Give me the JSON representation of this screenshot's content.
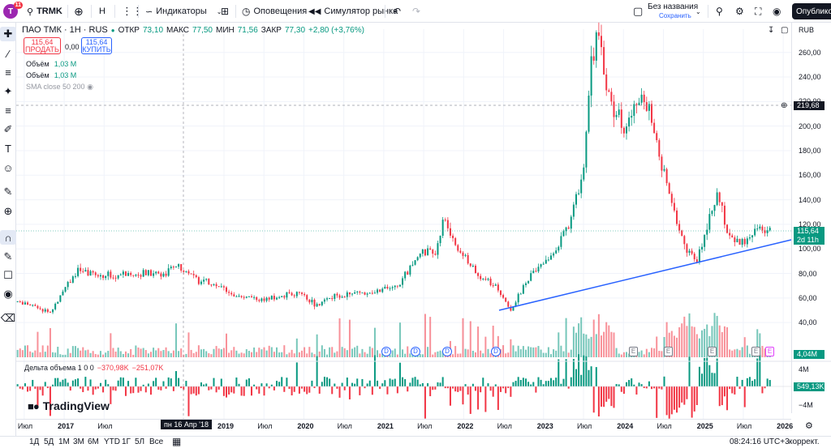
{
  "topbar": {
    "avatar_letter": "T",
    "avatar_badge": "11",
    "symbol": "TRMK",
    "interval": "H",
    "indicators_label": "Индикаторы",
    "alerts_label": "Оповещения",
    "replay_label": "Симулятор рынка",
    "layout_name": "Без названия",
    "layout_save": "Сохранить",
    "publish_label": "Опубликов"
  },
  "legend": {
    "title": "ПАО ТМК · 1Н · RUS",
    "open_key": "ОТКР",
    "open": "73,10",
    "high_key": "МАКС",
    "high": "77,50",
    "low_key": "МИН",
    "low": "71,56",
    "close_key": "ЗАКР",
    "close": "77,30",
    "change": "+2,80 (+3,76%)",
    "sell_price": "115,64",
    "sell_label": "ПРОДАТЬ",
    "spread": "0,00",
    "buy_price": "115,64",
    "buy_label": "КУПИТЬ",
    "vol1_label": "Объём",
    "vol1_value": "1,03 M",
    "vol2_label": "Объём",
    "vol2_value": "1,03 M",
    "sma_label": "SMA close 50 200",
    "currency": "RUB"
  },
  "delta_legend": {
    "label": "Дельта объема 1 0 0",
    "v1": "−370,98K",
    "v2": "−251,07K"
  },
  "price_scale": {
    "labels": [
      "260,00",
      "240,00",
      "220,00",
      "200,00",
      "180,00",
      "160,00",
      "140,00",
      "120,00",
      "100,00",
      "80,00",
      "60,00",
      "40,00"
    ],
    "crosshair_value": "219,68",
    "last_price": "115,64",
    "countdown": "2d 11h",
    "volume_value": "4,04M",
    "delta_axis": [
      "4M",
      "−4M"
    ],
    "delta_value": "549,13K"
  },
  "time_axis": {
    "labels": [
      "Июл",
      "2017",
      "Июл",
      "2019",
      "Июл",
      "2020",
      "Июл",
      "2021",
      "Июл",
      "2022",
      "Июл",
      "2023",
      "Июл",
      "2024",
      "Июл",
      "2025",
      "Июл",
      "2026"
    ],
    "cursor_label": "пн 16 Апр '18"
  },
  "events": {
    "dividend": "D",
    "earnings": "E"
  },
  "logo_text": "TradingView",
  "bottombar": {
    "ranges": [
      "1Д",
      "5Д",
      "1М",
      "3М",
      "6М",
      "YTD",
      "1Г",
      "5Л",
      "Все"
    ],
    "clock": "08:24:16 UTC+3",
    "adjust": "коррект."
  },
  "colors": {
    "up": "#089981",
    "down": "#f23645",
    "trendline": "#2962ff",
    "last_price_tag": "#089981",
    "dark": "#131722"
  },
  "chart_data": {
    "type": "candlestick",
    "symbol": "TRMK",
    "ylim": [
      35,
      275
    ],
    "price_path": [
      [
        "2016-06",
        57
      ],
      [
        "2016-09",
        52
      ],
      [
        "2016-11",
        48
      ],
      [
        "2017-01",
        68
      ],
      [
        "2017-03",
        82
      ],
      [
        "2017-06",
        79
      ],
      [
        "2017-09",
        78
      ],
      [
        "2017-12",
        81
      ],
      [
        "2018-02",
        80
      ],
      [
        "2018-04",
        80
      ],
      [
        "2018-06",
        86
      ],
      [
        "2018-09",
        75
      ],
      [
        "2018-12",
        70
      ],
      [
        "2019-03",
        62
      ],
      [
        "2019-06",
        58
      ],
      [
        "2019-09",
        60
      ],
      [
        "2019-12",
        65
      ],
      [
        "2020-03",
        54
      ],
      [
        "2020-06",
        62
      ],
      [
        "2020-09",
        64
      ],
      [
        "2020-12",
        66
      ],
      [
        "2021-03",
        68
      ],
      [
        "2021-06",
        94
      ],
      [
        "2021-09",
        100
      ],
      [
        "2021-10",
        125
      ],
      [
        "2021-12",
        100
      ],
      [
        "2022-02",
        88
      ],
      [
        "2022-03",
        78
      ],
      [
        "2022-06",
        70
      ],
      [
        "2022-08",
        50
      ],
      [
        "2022-11",
        78
      ],
      [
        "2023-01",
        88
      ],
      [
        "2023-03",
        100
      ],
      [
        "2023-05",
        122
      ],
      [
        "2023-07",
        165
      ],
      [
        "2023-08",
        250
      ],
      [
        "2023-09",
        275
      ],
      [
        "2023-11",
        220
      ],
      [
        "2024-01",
        200
      ],
      [
        "2024-04",
        225
      ],
      [
        "2024-06",
        190
      ],
      [
        "2024-08",
        140
      ],
      [
        "2024-10",
        105
      ],
      [
        "2024-12",
        88
      ],
      [
        "2025-02",
        130
      ],
      [
        "2025-03",
        145
      ],
      [
        "2025-05",
        108
      ],
      [
        "2025-07",
        105
      ],
      [
        "2025-09",
        118
      ],
      [
        "2025-11",
        115.64
      ]
    ],
    "trendline": {
      "from": [
        "2022-08",
        50
      ],
      "to": [
        "2026-01",
        105
      ]
    },
    "last_price": 115.64,
    "crosshair_price": 219.68,
    "cursor_date": "пн 16 Апр '18"
  }
}
